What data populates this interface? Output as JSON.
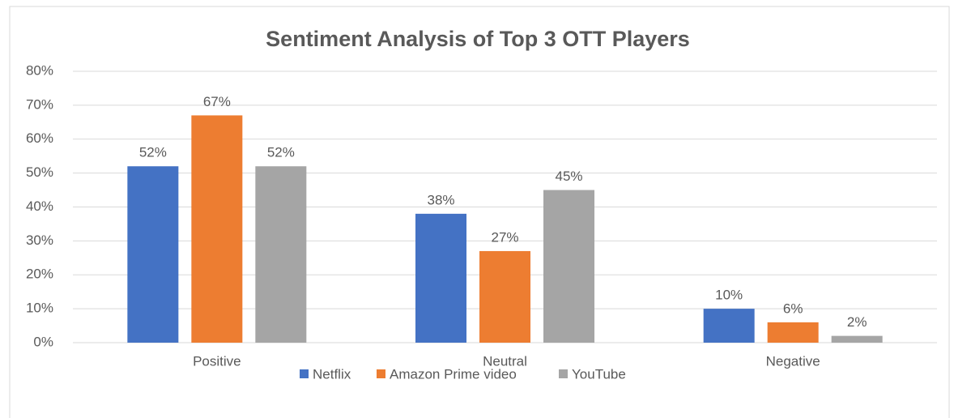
{
  "chart_data": {
    "type": "bar",
    "title": "Sentiment Analysis of Top 3 OTT Players",
    "categories": [
      "Positive",
      "Neutral",
      "Negative"
    ],
    "series": [
      {
        "name": "Netflix",
        "color": "#4472c4",
        "values": [
          52,
          38,
          10
        ],
        "value_labels": [
          "52%",
          "38%",
          "10%"
        ]
      },
      {
        "name": "Amazon Prime video",
        "color": "#ed7d31",
        "values": [
          67,
          27,
          6
        ],
        "value_labels": [
          "67%",
          "27%",
          "6%"
        ]
      },
      {
        "name": "YouTube",
        "color": "#a5a5a5",
        "values": [
          52,
          45,
          2
        ],
        "value_labels": [
          "52%",
          "45%",
          "2%"
        ]
      }
    ],
    "ylim": [
      0,
      80
    ],
    "yticks": [
      {
        "value": 0,
        "label": "0%"
      },
      {
        "value": 10,
        "label": "10%"
      },
      {
        "value": 20,
        "label": "20%"
      },
      {
        "value": 30,
        "label": "30%"
      },
      {
        "value": 40,
        "label": "40%"
      },
      {
        "value": 50,
        "label": "50%"
      },
      {
        "value": 60,
        "label": "60%"
      },
      {
        "value": 70,
        "label": "70%"
      },
      {
        "value": 80,
        "label": "80%"
      }
    ],
    "grid": true,
    "legend": "bottom"
  }
}
